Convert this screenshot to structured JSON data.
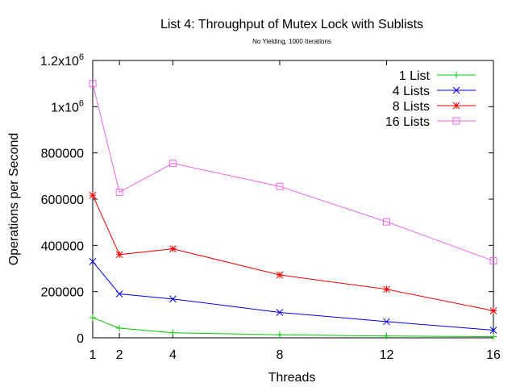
{
  "chart_data": {
    "type": "line",
    "title": "List 4: Throughput of Mutex Lock with Sublists",
    "subtitle": "No Yielding, 1000 Iterations",
    "xlabel": "Threads",
    "ylabel": "Operations per Second",
    "xlim": [
      1,
      16
    ],
    "ylim": [
      0,
      1200000
    ],
    "x_ticks": [
      {
        "value": 1,
        "label": "1"
      },
      {
        "value": 2,
        "label": "2"
      },
      {
        "value": 4,
        "label": "4"
      },
      {
        "value": 8,
        "label": "8"
      },
      {
        "value": 12,
        "label": "12"
      },
      {
        "value": 16,
        "label": "16"
      }
    ],
    "y_ticks": [
      {
        "value": 0,
        "label": "0"
      },
      {
        "value": 200000,
        "label": "200000"
      },
      {
        "value": 400000,
        "label": "400000"
      },
      {
        "value": 600000,
        "label": "600000"
      },
      {
        "value": 800000,
        "label": "800000"
      },
      {
        "value": 1000000,
        "label": "1x10",
        "sup": "6"
      },
      {
        "value": 1200000,
        "label": "1.2x10",
        "sup": "6"
      }
    ],
    "grid": false,
    "legend_position": "top-right",
    "x": [
      1,
      2,
      4,
      8,
      12,
      16
    ],
    "series": [
      {
        "name": "1 List",
        "color": "#00cc00",
        "marker": "plus",
        "values": [
          87000,
          42000,
          22000,
          13000,
          8000,
          5000
        ]
      },
      {
        "name": "4 Lists",
        "color": "#0000ee",
        "marker": "cross",
        "values": [
          330000,
          190000,
          168000,
          110000,
          70000,
          33000
        ]
      },
      {
        "name": "8 Lists",
        "color": "#ee0000",
        "marker": "star",
        "values": [
          617000,
          360000,
          385000,
          272000,
          210000,
          117000
        ]
      },
      {
        "name": "16 Lists",
        "color": "#ee66ee",
        "marker": "square",
        "values": [
          1100000,
          630000,
          755000,
          655000,
          502000,
          333000
        ]
      }
    ]
  }
}
